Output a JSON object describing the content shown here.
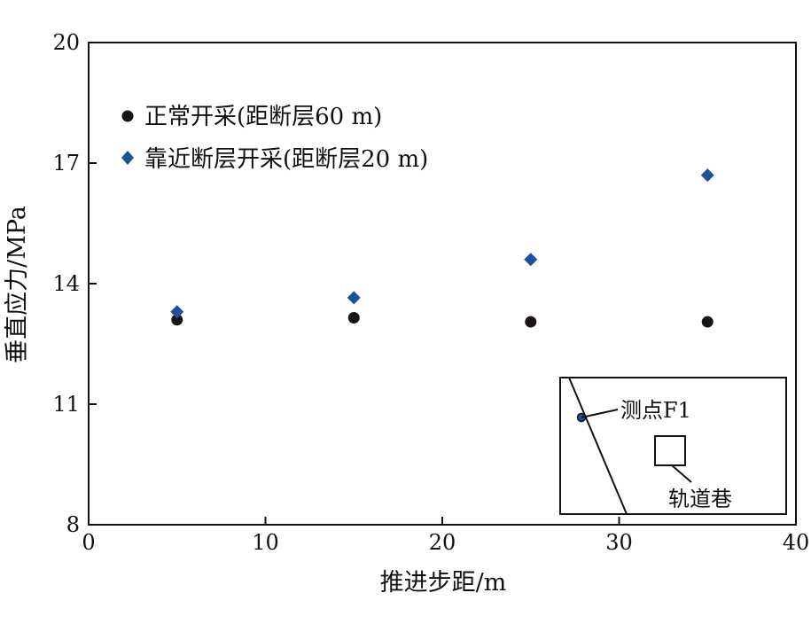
{
  "chart_data": {
    "type": "scatter",
    "xlabel": "推进步距/m",
    "ylabel": "垂直应力/MPa",
    "xlim": [
      0,
      40
    ],
    "ylim": [
      8,
      20
    ],
    "xticks": [
      0,
      10,
      20,
      30,
      40
    ],
    "yticks": [
      8,
      11,
      14,
      17,
      20
    ],
    "grid": false,
    "legend_position": "top-left",
    "series": [
      {
        "name": "正常开采(距断层60 m)",
        "marker": "circle",
        "color": "#1a1414",
        "x": [
          5,
          15,
          25,
          35
        ],
        "y": [
          13.1,
          13.15,
          13.05,
          13.05
        ]
      },
      {
        "name": "靠近断层开采(距断层20 m)",
        "marker": "diamond",
        "color": "#1f4e9c",
        "x": [
          5,
          15,
          25,
          35
        ],
        "y": [
          13.3,
          13.65,
          14.6,
          16.7
        ]
      }
    ],
    "inset": {
      "point_label": "测点F1",
      "roadway_label": "轨道巷"
    }
  }
}
